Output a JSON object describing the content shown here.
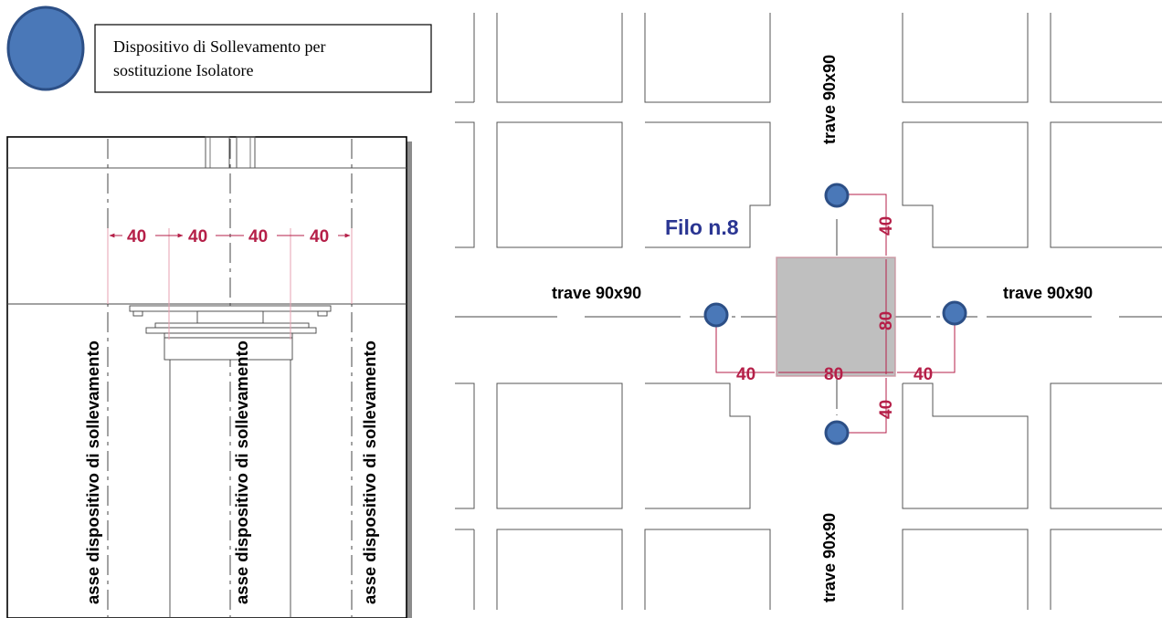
{
  "legend": {
    "line1": "Dispositivo di Sollevamento per",
    "line2": "sostituzione Isolatore"
  },
  "section_view": {
    "dimensions": [
      "40",
      "40",
      "40",
      "40"
    ],
    "axis_label": "asse dispositivo di sollevamento"
  },
  "plan_view": {
    "pillar_label": "Filo n.8",
    "beam_label": "trave 90x90",
    "dims": {
      "top": "40",
      "bottom": "40",
      "left": "40",
      "right": "40",
      "width": "80",
      "height": "80"
    }
  },
  "colors": {
    "device_fill": "#4a78b8",
    "device_stroke": "#2c4f86",
    "dimension": "#b51f48",
    "pillar_fill": "#bfbfbf",
    "filo_label": "#2a3592"
  }
}
